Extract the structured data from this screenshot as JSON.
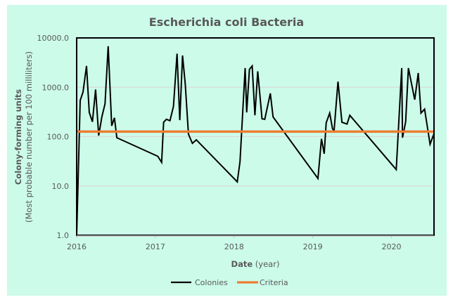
{
  "chart_data": {
    "type": "line",
    "title": "Escherichia coli Bacteria",
    "xlabel_bold": "Date",
    "xlabel_rest": " (year)",
    "ylabel_line1": "Colony-forming units",
    "ylabel_line2": "(Most probable number per 100 milliliters)",
    "yscale": "log",
    "ylim": [
      1,
      10000
    ],
    "yticks": [
      1,
      10,
      100,
      1000,
      10000
    ],
    "ytick_labels": [
      "1.0",
      "10.0",
      "100.0",
      "1000.0",
      "10000.0"
    ],
    "xlim": [
      2016,
      2020.54
    ],
    "xticks": [
      2016,
      2017,
      2018,
      2019,
      2020
    ],
    "xtick_labels": [
      "2016",
      "2017",
      "2018",
      "2019",
      "2020"
    ],
    "grid": "horizontal",
    "legend_position": "bottom",
    "colors": {
      "Colonies": "#000000",
      "Criteria": "#ed7d31",
      "background": "#ccfbea",
      "grid": "#d9d9d9"
    },
    "series": [
      {
        "name": "Colonies",
        "x": [
          2016.0,
          2016.045,
          2016.08,
          2016.125,
          2016.16,
          2016.2,
          2016.24,
          2016.28,
          2016.32,
          2016.36,
          2016.4,
          2016.445,
          2016.48,
          2016.51,
          2017.03,
          2017.08,
          2017.105,
          2017.14,
          2017.185,
          2017.23,
          2017.275,
          2017.31,
          2017.345,
          2017.38,
          2017.42,
          2017.47,
          2017.52,
          2018.04,
          2018.075,
          2018.14,
          2018.16,
          2018.195,
          2018.23,
          2018.265,
          2018.3,
          2018.33,
          2018.355,
          2018.39,
          2018.46,
          2018.495,
          2019.065,
          2019.11,
          2019.145,
          2019.17,
          2019.215,
          2019.25,
          2019.27,
          2019.32,
          2019.37,
          2019.435,
          2019.47,
          2020.06,
          2020.13,
          2020.14,
          2020.18,
          2020.215,
          2020.295,
          2020.34,
          2020.375,
          2020.42,
          2020.49,
          2020.54
        ],
        "y": [
          1.0,
          540,
          800,
          2700,
          310,
          200,
          900,
          105,
          250,
          460,
          6800,
          165,
          240,
          95,
          40,
          30,
          195,
          225,
          210,
          410,
          4800,
          215,
          4400,
          1150,
          112,
          73,
          86,
          12.1,
          31,
          2450,
          310,
          2300,
          2700,
          270,
          2100,
          640,
          230,
          225,
          750,
          250,
          14.2,
          90,
          45,
          190,
          300,
          145,
          130,
          1300,
          195,
          180,
          270,
          21.5,
          2450,
          95,
          200,
          2450,
          560,
          1950,
          300,
          360,
          70,
          115
        ]
      },
      {
        "name": "Criteria",
        "x": [
          2016.0,
          2020.54
        ],
        "y": [
          126,
          126
        ]
      }
    ]
  }
}
